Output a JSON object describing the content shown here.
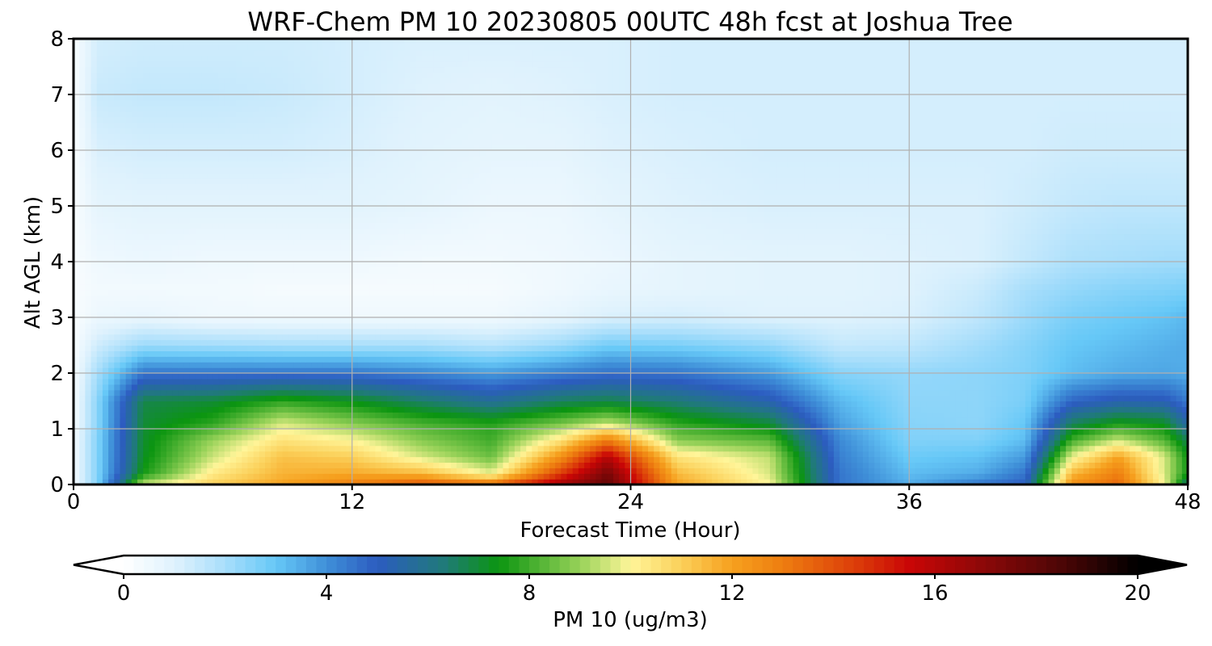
{
  "chart_data": {
    "type": "heatmap",
    "title": "WRF-Chem PM 10  20230805 00UTC 48h fcst at Joshua Tree",
    "xlabel": "Forecast Time (Hour)",
    "ylabel": "Alt AGL (km)",
    "xlim": [
      0,
      48
    ],
    "ylim": [
      0,
      8
    ],
    "xticks": [
      0,
      12,
      24,
      36,
      48
    ],
    "yticks": [
      0,
      1,
      2,
      3,
      4,
      5,
      6,
      7,
      8
    ],
    "grid": true,
    "colorbar": {
      "label": "PM 10  (ug/m3)",
      "min": 0,
      "max": 20,
      "ticks": [
        0,
        4,
        8,
        12,
        16,
        20
      ],
      "extend": "both",
      "stops": [
        {
          "v": 0,
          "color": "#ffffff"
        },
        {
          "v": 1,
          "color": "#dff2fd"
        },
        {
          "v": 2,
          "color": "#a8defb"
        },
        {
          "v": 3,
          "color": "#66c8f7"
        },
        {
          "v": 4,
          "color": "#3f8fd8"
        },
        {
          "v": 5,
          "color": "#2c5cc0"
        },
        {
          "v": 6.3,
          "color": "#207a7a"
        },
        {
          "v": 7.4,
          "color": "#0b9510"
        },
        {
          "v": 9,
          "color": "#98d259"
        },
        {
          "v": 10,
          "color": "#fff599"
        },
        {
          "v": 11,
          "color": "#fbd05a"
        },
        {
          "v": 12,
          "color": "#f6a01e"
        },
        {
          "v": 13,
          "color": "#ee7e10"
        },
        {
          "v": 14.5,
          "color": "#db3a09"
        },
        {
          "v": 15.5,
          "color": "#c90606"
        },
        {
          "v": 17,
          "color": "#8a0808"
        },
        {
          "v": 18.5,
          "color": "#4c0606"
        },
        {
          "v": 20,
          "color": "#000000"
        }
      ]
    },
    "x": [
      0,
      1,
      3,
      6,
      9,
      12,
      15,
      18,
      21,
      23,
      26,
      30,
      33,
      36,
      39,
      41,
      43,
      45,
      47,
      48
    ],
    "y": [
      0,
      0.2,
      0.5,
      0.8,
      1.1,
      1.5,
      2,
      2.5,
      3,
      3.5,
      4,
      5,
      6,
      7,
      8
    ],
    "z": [
      [
        0.4,
        2.5,
        9.5,
        11,
        12,
        13,
        14,
        13.5,
        16.5,
        18,
        12,
        10,
        4.5,
        3.5,
        4.5,
        5,
        12.5,
        13.5,
        10,
        6
      ],
      [
        0.4,
        2.5,
        7.5,
        10.3,
        11.6,
        11.8,
        11.5,
        9.8,
        14.5,
        17.5,
        11.5,
        9.6,
        4.5,
        3.2,
        3.5,
        4.5,
        11.5,
        13,
        9.6,
        7.5
      ],
      [
        0.4,
        2.5,
        7.2,
        9.5,
        11.3,
        11,
        9.6,
        8.5,
        12.5,
        16,
        10.5,
        9.4,
        4.3,
        2.9,
        3.1,
        3.8,
        9.8,
        12,
        9.6,
        7.4
      ],
      [
        0.4,
        2.5,
        7.1,
        9,
        10.5,
        10,
        8.8,
        8,
        10.5,
        13,
        8.8,
        8.3,
        4.1,
        2.6,
        2.6,
        3.2,
        8,
        9.5,
        8.2,
        6.7
      ],
      [
        0.3,
        2.4,
        7,
        7.8,
        9.6,
        8.8,
        8.1,
        7.7,
        8.6,
        9.4,
        7.8,
        7,
        3.7,
        2.5,
        2.4,
        3,
        6.6,
        7.5,
        7.2,
        5.5
      ],
      [
        0.3,
        2.4,
        6.8,
        7,
        7.8,
        7.3,
        6.5,
        5.8,
        6.6,
        6.8,
        6.3,
        5.3,
        3.3,
        2.4,
        2.4,
        2.7,
        4.8,
        5.3,
        5.2,
        4.4
      ],
      [
        0.3,
        2,
        4.5,
        4.5,
        4.5,
        4.5,
        4.2,
        3.8,
        4.3,
        4.6,
        4.5,
        3.8,
        2.5,
        2.3,
        2.4,
        2.6,
        3.2,
        3.5,
        3.6,
        3.5
      ],
      [
        0.2,
        1.3,
        2.2,
        2.1,
        2,
        2,
        2,
        1.7,
        2.2,
        2.8,
        2.7,
        2.3,
        1.5,
        1.6,
        2.1,
        2.5,
        3,
        3.2,
        3.4,
        3.5
      ],
      [
        0.2,
        0.6,
        0.7,
        0.5,
        0.5,
        0.5,
        0.5,
        0.5,
        0.8,
        1.1,
        1.2,
        1,
        1,
        1.1,
        1.6,
        2.2,
        2.7,
        2.9,
        3.1,
        3.3
      ],
      [
        0.2,
        0.4,
        0.4,
        0.4,
        0.3,
        0.3,
        0.3,
        0.3,
        0.5,
        0.7,
        0.8,
        0.9,
        0.9,
        1,
        1.4,
        2,
        2.3,
        2.5,
        2.6,
        2.7
      ],
      [
        0.2,
        0.5,
        0.6,
        0.5,
        0.5,
        0.5,
        0.4,
        0.4,
        0.5,
        0.6,
        0.8,
        0.9,
        0.9,
        1,
        1.1,
        1.5,
        1.9,
        2,
        2.1,
        2.1
      ],
      [
        0.2,
        0.8,
        0.9,
        0.9,
        0.9,
        0.9,
        0.8,
        0.6,
        0.6,
        0.8,
        1,
        1.1,
        1.1,
        1.1,
        1.1,
        1.3,
        1.5,
        1.6,
        1.6,
        1.6
      ],
      [
        0.2,
        1.1,
        1.2,
        1.2,
        1.2,
        1.1,
        0.9,
        0.8,
        0.8,
        1,
        1.1,
        1.2,
        1.2,
        1.2,
        1.2,
        1.2,
        1.3,
        1.3,
        1.3,
        1.3
      ],
      [
        0.2,
        1.4,
        1.5,
        1.5,
        1.4,
        1.2,
        1,
        0.9,
        1,
        1.1,
        1.2,
        1.2,
        1.2,
        1.2,
        1.2,
        1.2,
        1.2,
        1.2,
        1.2,
        1.2
      ],
      [
        0.2,
        1.2,
        1.3,
        1.3,
        1.3,
        1.2,
        1.1,
        1.1,
        1.1,
        1.1,
        1.2,
        1.2,
        1.2,
        1.2,
        1.2,
        1.2,
        1.2,
        1.2,
        1.2,
        1.2
      ]
    ]
  }
}
